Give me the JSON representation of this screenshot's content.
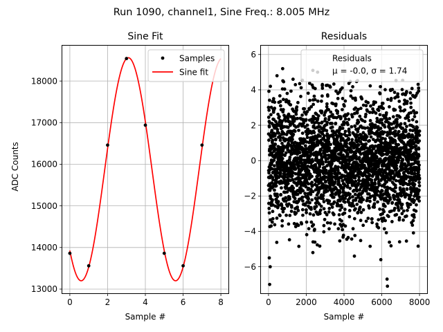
{
  "figure": {
    "suptitle": "Run 1090, channel1, Sine Freq.: 8.005 MHz"
  },
  "chart_data": [
    {
      "type": "line",
      "title": "Sine Fit",
      "xlabel": "Sample #",
      "ylabel": "ADC Counts",
      "xlim": [
        -0.4,
        8.4
      ],
      "ylim": [
        12900,
        18850
      ],
      "xticks": [
        0,
        2,
        4,
        6,
        8
      ],
      "yticks": [
        13000,
        14000,
        15000,
        16000,
        17000,
        18000
      ],
      "grid": true,
      "legend_position": "top-right",
      "series": [
        {
          "name": "Samples",
          "style": "markers",
          "color": "#000000",
          "x": [
            0,
            1,
            2,
            3,
            4,
            5,
            6,
            7
          ],
          "y": [
            13860,
            13560,
            16460,
            18540,
            16940,
            13860,
            13560,
            16460
          ]
        },
        {
          "name": "Sine fit",
          "style": "line",
          "color": "#ff0000",
          "function": {
            "offset": 15880,
            "amplitude": 2680,
            "period": 5.0,
            "phase_peak_x": 3.1,
            "x_range": [
              0,
              8
            ]
          }
        }
      ]
    },
    {
      "type": "scatter",
      "title": "Residuals",
      "xlabel": "Sample #",
      "ylabel": "",
      "xlim": [
        -400,
        8400
      ],
      "ylim": [
        -7.5,
        6.5
      ],
      "xticks": [
        0,
        2000,
        4000,
        6000,
        8000
      ],
      "yticks": [
        -6,
        -4,
        -2,
        0,
        2,
        4,
        6
      ],
      "grid": true,
      "legend_position": "top-right",
      "legend_lines": [
        "Residuals",
        "μ = -0.0, σ = 1.74"
      ],
      "series": [
        {
          "name": "Residuals",
          "color": "#000000",
          "n_points": 8000,
          "mean": -0.0,
          "std": 1.74,
          "x_range": [
            0,
            8000
          ],
          "notable_points": [
            {
              "x": 60,
              "y": -7.0
            },
            {
              "x": 90,
              "y": -6.0
            },
            {
              "x": 40,
              "y": -5.5
            },
            {
              "x": 6300,
              "y": -7.1
            },
            {
              "x": 6280,
              "y": -6.7
            },
            {
              "x": 5950,
              "y": -5.6
            },
            {
              "x": 4550,
              "y": -5.4
            },
            {
              "x": 2350,
              "y": -5.2
            },
            {
              "x": 750,
              "y": 5.2
            },
            {
              "x": 2600,
              "y": 5.0
            },
            {
              "x": 2350,
              "y": 5.1
            },
            {
              "x": 100,
              "y": 4.2
            },
            {
              "x": 450,
              "y": 4.8
            },
            {
              "x": 1300,
              "y": 4.6
            },
            {
              "x": 7950,
              "y": 4.1
            }
          ]
        }
      ]
    }
  ]
}
